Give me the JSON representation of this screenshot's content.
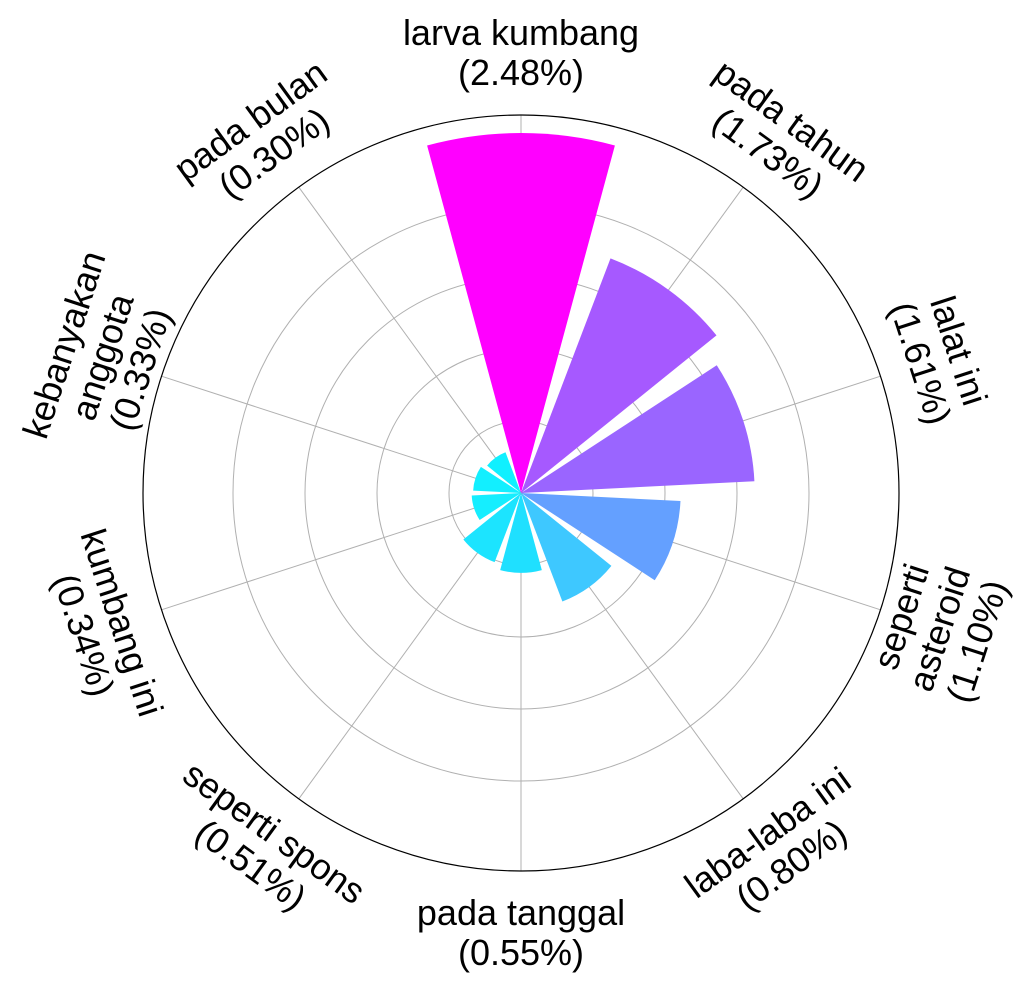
{
  "chart_data": {
    "type": "polar-bar",
    "title": "",
    "rmax": 2.48,
    "grid": true,
    "categories": [
      {
        "label_lines": [
          "larva kumbang",
          "(2.48%)"
        ],
        "value": 2.48,
        "color": "#ff00ff"
      },
      {
        "label_lines": [
          "pada tahun",
          "(1.73%)"
        ],
        "value": 1.73,
        "color": "#a659ff"
      },
      {
        "label_lines": [
          "lalat ini",
          "(1.61%)"
        ],
        "value": 1.61,
        "color": "#9a65ff"
      },
      {
        "label_lines": [
          "seperti",
          "asteroid",
          "(1.10%)"
        ],
        "value": 1.1,
        "color": "#64a0ff"
      },
      {
        "label_lines": [
          "laba-laba ini",
          "(0.80%)"
        ],
        "value": 0.8,
        "color": "#3ec8ff"
      },
      {
        "label_lines": [
          "pada tanggal",
          "(0.55%)"
        ],
        "value": 0.55,
        "color": "#1fe0ff"
      },
      {
        "label_lines": [
          "seperti spons",
          "(0.51%)"
        ],
        "value": 0.51,
        "color": "#1ce4ff"
      },
      {
        "label_lines": [
          "kumbang ini",
          "(0.34%)"
        ],
        "value": 0.34,
        "color": "#15eeff"
      },
      {
        "label_lines": [
          "kebanyakan",
          "anggota",
          "(0.33%)"
        ],
        "value": 0.33,
        "color": "#12efff"
      },
      {
        "label_lines": [
          "pada bulan",
          "(0.30%)"
        ],
        "value": 0.3,
        "color": "#10f0ff"
      }
    ]
  }
}
